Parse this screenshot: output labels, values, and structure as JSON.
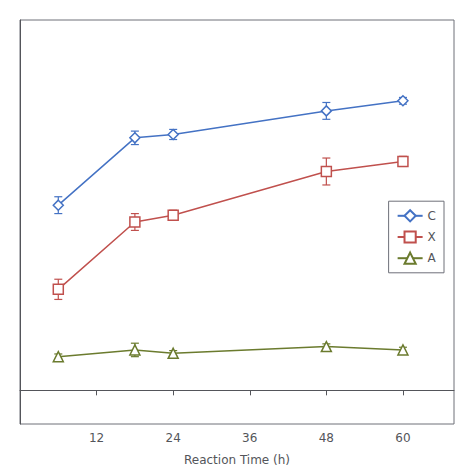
{
  "chart_data": {
    "type": "line",
    "xlabel": "Reaction Time (h)",
    "x": [
      6,
      18,
      24,
      48,
      60
    ],
    "series": [
      {
        "name": "C",
        "color": "#4472C4",
        "marker": "diamond",
        "values": [
          55,
          75,
          76,
          83,
          86
        ],
        "yerr": [
          2.5,
          2,
          1.5,
          2.5,
          1
        ]
      },
      {
        "name": "X",
        "color": "#C0504D",
        "marker": "square",
        "values": [
          30,
          50,
          52,
          65,
          68
        ],
        "yerr": [
          3,
          2.5,
          1.5,
          4,
          1.5
        ]
      },
      {
        "name": "A",
        "color": "#6B7B2E",
        "marker": "triangle",
        "values": [
          10,
          12,
          11,
          13,
          12
        ],
        "yerr": [
          0.8,
          2,
          0.8,
          0.8,
          0.8
        ]
      }
    ],
    "xlim": [
      0,
      68
    ],
    "xticks": [
      12,
      24,
      36,
      48,
      60
    ],
    "ylim": [
      -10,
      110
    ],
    "tick_labels": "x",
    "grid": false,
    "legend": "right"
  }
}
